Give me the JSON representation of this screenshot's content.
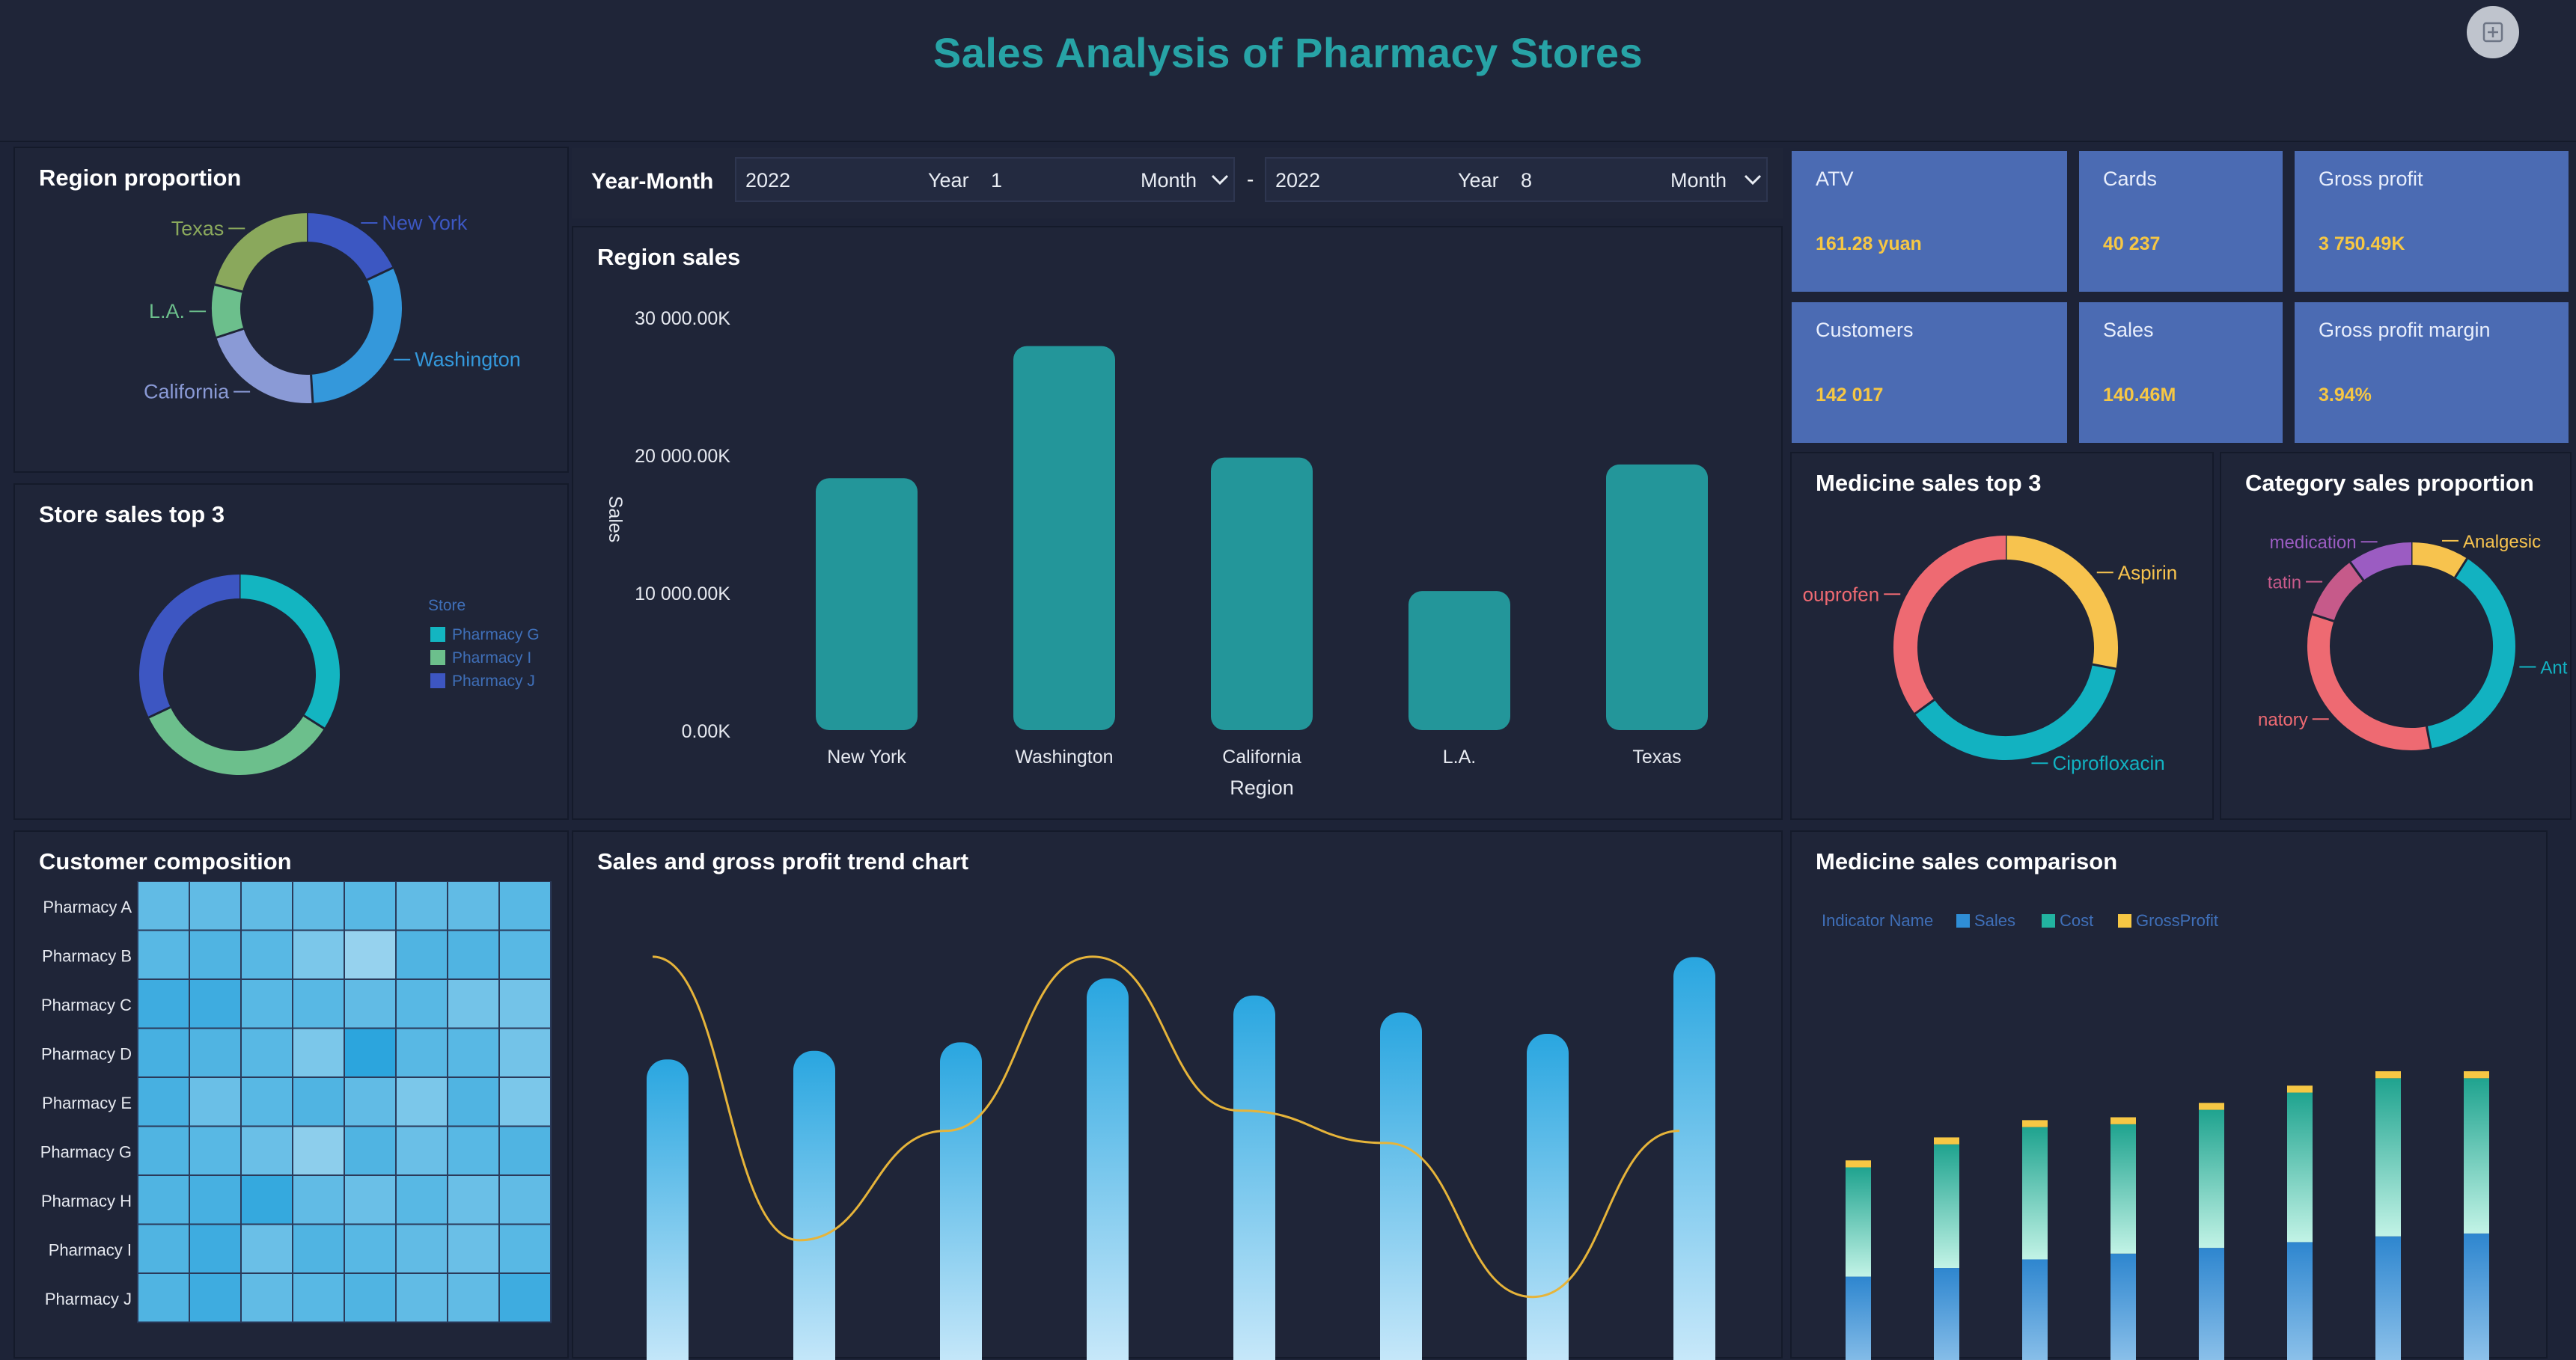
{
  "header": {
    "title": "Sales Analysis of Pharmacy Stores"
  },
  "year_month": {
    "label": "Year-Month",
    "start": {
      "year": "2022",
      "year_word": "Year",
      "year_num": "1",
      "month_word": "Month"
    },
    "separator": "-",
    "end": {
      "year": "2022",
      "year_word": "Year",
      "year_num": "8",
      "month_word": "Month"
    }
  },
  "kpis": {
    "atv": {
      "label": "ATV",
      "value": "161.28 yuan"
    },
    "cards": {
      "label": "Cards",
      "value": "40 237"
    },
    "gross_profit": {
      "label": "Gross profit",
      "value": "3 750.49K"
    },
    "customers": {
      "label": "Customers",
      "value": "142 017"
    },
    "sales": {
      "label": "Sales",
      "value": "140.46M"
    },
    "gross_profit_margin": {
      "label": "Gross profit margin",
      "value": "3.94%"
    }
  },
  "panels": {
    "region_proportion": "Region proportion",
    "store_sales_top3": "Store sales top 3",
    "customer_composition": "Customer composition",
    "region_sales": "Region sales",
    "trend": "Sales and gross profit trend chart",
    "medicine_top3": "Medicine sales top 3",
    "category_proportion": "Category sales proportion",
    "medicine_comparison": "Medicine sales comparison"
  },
  "chart_data": [
    {
      "id": "region_proportion",
      "type": "pie",
      "donut": true,
      "labels": [
        "New York",
        "Washington",
        "California",
        "L.A.",
        "Texas"
      ],
      "values": [
        18,
        31,
        21,
        9,
        21
      ],
      "colors": [
        "#3c57c2",
        "#3498db",
        "#8a9ad6",
        "#6cbf8c",
        "#8aa85c"
      ]
    },
    {
      "id": "store_sales_top3",
      "type": "pie",
      "donut": true,
      "legend_title": "Store",
      "labels": [
        "Pharmacy G",
        "Pharmacy I",
        "Pharmacy J"
      ],
      "values": [
        34,
        34,
        32
      ],
      "colors": [
        "#13b5c1",
        "#6cbf8c",
        "#3d56c2"
      ]
    },
    {
      "id": "region_sales",
      "type": "bar",
      "categories": [
        "New York",
        "Washington",
        "California",
        "L.A.",
        "Texas"
      ],
      "values": [
        18300,
        27900,
        19800,
        10100,
        19300
      ],
      "ylim": [
        0,
        30000
      ],
      "yticks": [
        "30 000.00K",
        "20 000.00K",
        "10 000.00K",
        "0.00K"
      ],
      "xlabel": "Region",
      "ylabel": "Sales",
      "color": "#23969a"
    },
    {
      "id": "customer_composition",
      "type": "heatmap",
      "rows": [
        "Pharmacy A",
        "Pharmacy B",
        "Pharmacy C",
        "Pharmacy D",
        "Pharmacy E",
        "Pharmacy G",
        "Pharmacy H",
        "Pharmacy I",
        "Pharmacy J"
      ],
      "values": [
        [
          0.55,
          0.55,
          0.55,
          0.55,
          0.5,
          0.55,
          0.55,
          0.5
        ],
        [
          0.5,
          0.45,
          0.5,
          0.7,
          0.85,
          0.45,
          0.45,
          0.5
        ],
        [
          0.35,
          0.35,
          0.5,
          0.5,
          0.55,
          0.5,
          0.65,
          0.65
        ],
        [
          0.4,
          0.45,
          0.5,
          0.7,
          0.25,
          0.5,
          0.5,
          0.65
        ],
        [
          0.4,
          0.6,
          0.5,
          0.45,
          0.55,
          0.7,
          0.45,
          0.7
        ],
        [
          0.45,
          0.5,
          0.6,
          0.8,
          0.45,
          0.6,
          0.5,
          0.45
        ],
        [
          0.45,
          0.4,
          0.3,
          0.55,
          0.6,
          0.5,
          0.6,
          0.55
        ],
        [
          0.45,
          0.35,
          0.6,
          0.45,
          0.5,
          0.55,
          0.6,
          0.5
        ],
        [
          0.45,
          0.35,
          0.55,
          0.5,
          0.45,
          0.55,
          0.55,
          0.35
        ]
      ]
    },
    {
      "id": "trend",
      "type": "bar",
      "series": [
        {
          "type": "bar",
          "values": [
            0.74,
            0.76,
            0.78,
            0.93,
            0.89,
            0.85,
            0.8,
            0.98
          ]
        },
        {
          "type": "line",
          "values": [
            0.98,
            0.28,
            0.55,
            0.98,
            0.6,
            0.52,
            0.14,
            0.55
          ]
        }
      ],
      "colors": [
        "#2aa7e0",
        "#e6b43a"
      ]
    },
    {
      "id": "medicine_top3",
      "type": "pie",
      "donut": true,
      "labels": [
        "Aspirin",
        "Ciprofloxacin",
        "Ibuprofen"
      ],
      "visible_labels": [
        "Aspirin",
        "Ciprofloxacin",
        "ouprofen"
      ],
      "values": [
        28,
        37,
        35
      ],
      "colors": [
        "#f7c34e",
        "#12b2c1",
        "#ee6a72"
      ]
    },
    {
      "id": "category_proportion",
      "type": "pie",
      "donut": true,
      "labels": [
        "Analgesic",
        "Ant",
        "natory",
        "tatin",
        "medication"
      ],
      "values": [
        9,
        38,
        33,
        10,
        10
      ],
      "colors": [
        "#f7c34e",
        "#12b2c1",
        "#ee6a72",
        "#c65a8a",
        "#9b5cc2"
      ]
    },
    {
      "id": "medicine_comparison",
      "type": "bar",
      "stacked": true,
      "legend_title": "Indicator Name",
      "series": [
        {
          "name": "Sales",
          "values": [
            0.42,
            0.45,
            0.48,
            0.5,
            0.52,
            0.54,
            0.56,
            0.57
          ]
        },
        {
          "name": "Cost",
          "values": [
            0.38,
            0.43,
            0.46,
            0.45,
            0.48,
            0.52,
            0.55,
            0.54
          ]
        },
        {
          "name": "GrossProfit",
          "values": [
            0.015,
            0.015,
            0.015,
            0.015,
            0.015,
            0.015,
            0.015,
            0.015
          ]
        }
      ],
      "colors": [
        "#2f8ed6",
        "#22b3a0",
        "#f6c744"
      ]
    }
  ]
}
